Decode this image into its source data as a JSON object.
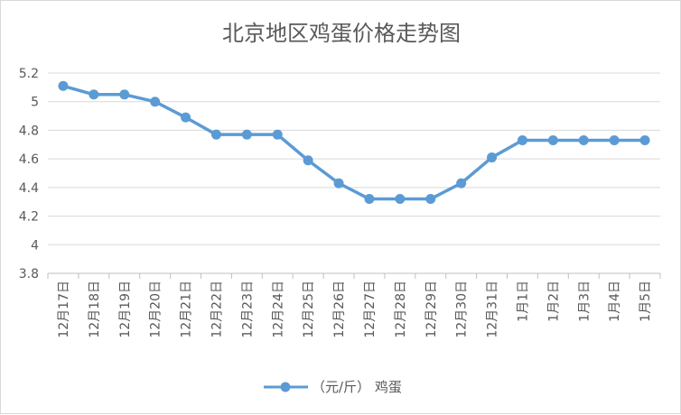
{
  "chart_data": {
    "type": "line",
    "title": "北京地区鸡蛋价格走势图",
    "categories": [
      "12月17日",
      "12月18日",
      "12月19日",
      "12月20日",
      "12月21日",
      "12月22日",
      "12月23日",
      "12月24日",
      "12月25日",
      "12月26日",
      "12月27日",
      "12月28日",
      "12月29日",
      "12月30日",
      "12月31日",
      "1月1日",
      "1月2日",
      "1月3日",
      "1月4日",
      "1月5日"
    ],
    "series": [
      {
        "name": "（元/斤） 鸡蛋",
        "values": [
          5.11,
          5.05,
          5.05,
          5.0,
          4.89,
          4.77,
          4.77,
          4.77,
          4.59,
          4.43,
          4.32,
          4.32,
          4.32,
          4.43,
          4.61,
          4.73,
          4.73,
          4.73,
          4.73,
          4.73
        ],
        "color": "#5b9bd5"
      }
    ],
    "y_ticks": [
      "3.8",
      "4",
      "4.2",
      "4.4",
      "4.6",
      "4.8",
      "5",
      "5.2"
    ],
    "ylim": [
      3.8,
      5.2
    ],
    "grid": true,
    "legend_position": "bottom"
  }
}
